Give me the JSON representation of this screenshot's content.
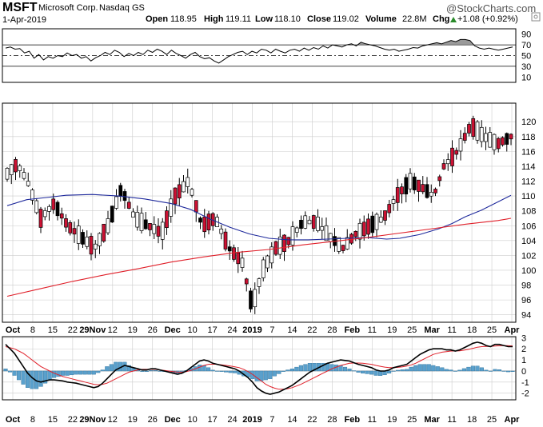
{
  "header": {
    "symbol": "MSFT",
    "company": "Microsoft Corp.",
    "exchange": "Nasdaq GS",
    "date": "1-Apr-2019",
    "watermark": "@StockCharts.com",
    "quote": {
      "open_label": "Open",
      "open": "118.95",
      "high_label": "High",
      "high": "119.11",
      "low_label": "Low",
      "low": "118.10",
      "close_label": "Close",
      "close": "119.02",
      "volume_label": "Volume",
      "volume": "22.8M",
      "chg_label": "Chg",
      "chg": "+1.08 (+0.92%)",
      "chg_icon": "up-triangle-icon"
    }
  },
  "colors": {
    "up_candle": "#ffffff",
    "down_candle": "#cc1133",
    "black_candle": "#000000",
    "sma_blue": "#1f2a9c",
    "sma_red": "#e0202a",
    "macd_line": "#000000",
    "signal_line": "#e0202a",
    "histogram": "#5aa0cc",
    "grid": "#cccccc",
    "rsi_fill": "#808080"
  },
  "x_labels": [
    "Oct",
    "8",
    "15",
    "22",
    "29Nov",
    "12",
    "19",
    "26",
    "Dec",
    "10",
    "17",
    "24",
    "2019",
    "7",
    "14",
    "22",
    "28",
    "Feb",
    "11",
    "19",
    "25",
    "Mar",
    "11",
    "18",
    "25",
    "Apr"
  ],
  "chart_data": [
    {
      "type": "line",
      "name": "rsi",
      "ylim": [
        0,
        100
      ],
      "yticks": [
        90,
        70,
        50,
        30,
        10
      ],
      "reference_lines": [
        70,
        50,
        30
      ],
      "values": [
        64,
        66,
        62,
        63,
        55,
        58,
        45,
        52,
        42,
        48,
        45,
        50,
        48,
        55,
        50,
        52,
        45,
        48,
        40,
        46,
        50,
        56,
        52,
        60,
        56,
        48,
        54,
        50,
        56,
        52,
        60,
        56,
        62,
        58,
        52,
        60,
        54,
        50,
        45,
        52,
        56,
        48,
        44,
        46,
        40,
        36,
        42,
        48,
        52,
        56,
        58,
        52,
        58,
        55,
        62,
        60,
        55,
        62,
        58,
        55,
        60,
        62,
        58,
        64,
        60,
        65,
        62,
        68,
        64,
        70,
        68,
        66,
        70,
        72,
        68,
        75,
        72,
        70,
        68,
        65,
        62,
        60,
        62,
        58,
        60,
        62,
        65,
        64,
        68,
        70,
        72,
        74,
        72,
        75,
        78,
        76,
        80,
        80,
        78,
        68,
        64,
        62,
        64,
        62,
        60,
        62,
        64,
        66
      ]
    },
    {
      "type": "candlestick",
      "name": "price",
      "ylim": [
        93,
        122.5
      ],
      "yticks": [
        120,
        118,
        116,
        114,
        112,
        110,
        108,
        106,
        104,
        102,
        100,
        98,
        96,
        94
      ],
      "series": [
        {
          "name": "sma50",
          "points": [
            [
              0,
              108.7
            ],
            [
              6,
              109.5
            ],
            [
              12,
              109.8
            ],
            [
              18,
              110.1
            ],
            [
              26,
              110.2
            ],
            [
              34,
              110.0
            ],
            [
              42,
              109.6
            ],
            [
              50,
              109.0
            ],
            [
              56,
              108.2
            ],
            [
              62,
              106.9
            ],
            [
              68,
              105.8
            ],
            [
              74,
              104.9
            ],
            [
              80,
              104.3
            ],
            [
              86,
              104.1
            ],
            [
              92,
              104.1
            ],
            [
              98,
              104.2
            ],
            [
              104,
              104.3
            ],
            [
              110,
              104.4
            ],
            [
              116,
              104.2
            ],
            [
              120,
              104.3
            ],
            [
              126,
              104.8
            ],
            [
              132,
              105.6
            ],
            [
              136,
              106.3
            ],
            [
              140,
              107.2
            ],
            [
              145,
              108.1
            ],
            [
              150,
              109.2
            ],
            [
              154,
              110.1
            ]
          ]
        },
        {
          "name": "sma200",
          "points": [
            [
              0,
              96.5
            ],
            [
              10,
              97.5
            ],
            [
              20,
              98.5
            ],
            [
              30,
              99.4
            ],
            [
              40,
              100.2
            ],
            [
              50,
              101.1
            ],
            [
              60,
              101.8
            ],
            [
              70,
              102.4
            ],
            [
              80,
              102.8
            ],
            [
              90,
              103.4
            ],
            [
              100,
              103.9
            ],
            [
              110,
              104.4
            ],
            [
              120,
              105.0
            ],
            [
              130,
              105.6
            ],
            [
              140,
              106.2
            ],
            [
              150,
              106.7
            ],
            [
              154,
              107.0
            ]
          ]
        }
      ]
    },
    {
      "type": "bar",
      "name": "macd",
      "ylim": [
        -2.6,
        3.1
      ],
      "yticks": [
        3,
        2,
        1,
        0,
        -1,
        -2
      ],
      "macd": [
        2.4,
        2.0,
        1.6,
        1.0,
        0.4,
        -0.2,
        -0.6,
        -0.9,
        -1.0,
        -0.9,
        -0.8,
        -0.8,
        -0.85,
        -0.9,
        -1.0,
        -1.05,
        -1.1,
        -1.2,
        -1.3,
        -1.4,
        -1.5,
        -1.4,
        -1.1,
        -0.7,
        -0.3,
        0.1,
        0.3,
        0.5,
        0.4,
        0.3,
        0.2,
        0.1,
        0.1,
        0.2,
        0.2,
        0.1,
        0.0,
        -0.1,
        -0.2,
        -0.3,
        -0.2,
        0.0,
        0.3,
        0.6,
        0.9,
        1.0,
        0.9,
        0.7,
        0.6,
        0.5,
        0.4,
        0.3,
        0.2,
        0.0,
        -0.3,
        -0.6,
        -1.0,
        -1.5,
        -1.8,
        -2.0,
        -2.1,
        -2.0,
        -1.9,
        -1.7,
        -1.5,
        -1.3,
        -1.0,
        -0.7,
        -0.4,
        -0.1,
        0.1,
        0.3,
        0.5,
        0.7,
        0.8,
        0.9,
        1.0,
        0.95,
        0.9,
        0.75,
        0.6,
        0.5,
        0.4,
        0.3,
        0.1,
        0.0,
        0.0,
        0.1,
        0.3,
        0.4,
        0.5,
        0.6,
        0.9,
        1.2,
        1.5,
        1.7,
        1.9,
        2.0,
        2.0,
        2.0,
        1.9,
        1.9,
        1.8,
        1.9,
        2.1,
        2.3,
        2.5,
        2.6,
        2.5,
        2.3,
        2.2,
        2.4,
        2.4,
        2.3,
        2.2,
        2.2
      ],
      "signal": [
        2.2,
        2.1,
        2.0,
        1.8,
        1.6,
        1.3,
        1.0,
        0.7,
        0.4,
        0.2,
        0.0,
        -0.2,
        -0.35,
        -0.5,
        -0.6,
        -0.7,
        -0.8,
        -0.9,
        -1.0,
        -1.1,
        -1.2,
        -1.25,
        -1.2,
        -1.1,
        -0.9,
        -0.7,
        -0.5,
        -0.3,
        -0.1,
        0.0,
        0.1,
        0.15,
        0.15,
        0.15,
        0.15,
        0.1,
        0.05,
        0.0,
        -0.05,
        -0.1,
        -0.1,
        -0.05,
        0.05,
        0.2,
        0.35,
        0.5,
        0.6,
        0.62,
        0.6,
        0.55,
        0.5,
        0.45,
        0.38,
        0.3,
        0.15,
        -0.05,
        -0.3,
        -0.6,
        -0.9,
        -1.2,
        -1.4,
        -1.55,
        -1.65,
        -1.65,
        -1.6,
        -1.5,
        -1.35,
        -1.2,
        -1.0,
        -0.8,
        -0.6,
        -0.4,
        -0.2,
        0.0,
        0.2,
        0.35,
        0.5,
        0.6,
        0.7,
        0.72,
        0.72,
        0.7,
        0.65,
        0.6,
        0.5,
        0.42,
        0.35,
        0.3,
        0.3,
        0.33,
        0.38,
        0.45,
        0.55,
        0.7,
        0.9,
        1.1,
        1.3,
        1.5,
        1.6,
        1.7,
        1.75,
        1.8,
        1.8,
        1.82,
        1.88,
        1.95,
        2.05,
        2.15,
        2.2,
        2.22,
        2.22,
        2.25,
        2.28,
        2.3,
        2.28,
        2.26
      ]
    }
  ]
}
